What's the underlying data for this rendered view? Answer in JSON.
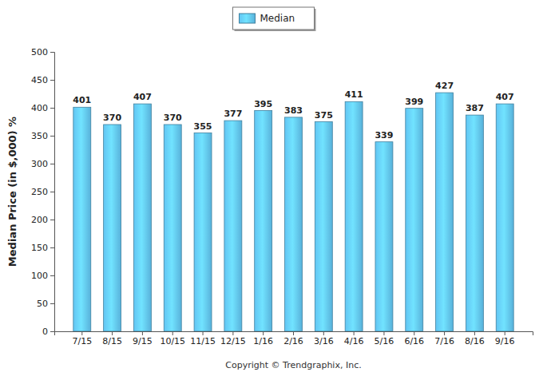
{
  "chart_data": {
    "type": "bar",
    "y_label": "Median Price (in $,000) %",
    "annotations": [
      "Copyright © Trendgraphix, Inc."
    ],
    "categories": [
      "7/15",
      "8/15",
      "9/15",
      "10/15",
      "11/15",
      "12/15",
      "1/16",
      "2/16",
      "3/16",
      "4/16",
      "5/16",
      "6/16",
      "7/16",
      "8/16",
      "9/16"
    ],
    "series": [
      {
        "name": "Median",
        "color": "#62c5f3",
        "values": [
          401,
          370,
          407,
          370,
          355,
          377,
          395,
          383,
          375,
          411,
          339,
          399,
          427,
          387,
          407
        ]
      }
    ],
    "ylim": [
      0,
      500
    ],
    "yticks": [
      0,
      50,
      100,
      150,
      200,
      250,
      300,
      350,
      400,
      450,
      500
    ],
    "grid": false,
    "legend": "top",
    "data_labels": true
  }
}
